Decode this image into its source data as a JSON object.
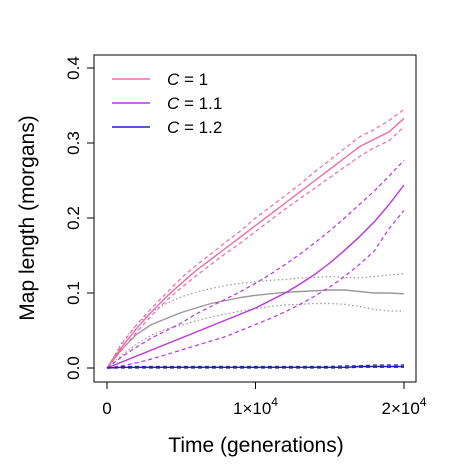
{
  "chart_data": {
    "type": "line",
    "title": "",
    "xlabel": "Time (generations)",
    "ylabel": "Map length (morgans)",
    "xlim": [
      0,
      20000
    ],
    "ylim": [
      0,
      0.4
    ],
    "grid": false,
    "legend_position": "top-left",
    "x_ticks": [
      {
        "value": 0,
        "label": "0"
      },
      {
        "value": 10000,
        "label_base": "1×10",
        "label_exp": "4"
      },
      {
        "value": 20000,
        "label_base": "2×10",
        "label_exp": "4"
      }
    ],
    "y_ticks": [
      {
        "value": 0.0,
        "label": "0.0"
      },
      {
        "value": 0.1,
        "label": "0.1"
      },
      {
        "value": 0.2,
        "label": "0.2"
      },
      {
        "value": 0.3,
        "label": "0.3"
      },
      {
        "value": 0.4,
        "label": "0.4"
      }
    ],
    "legend": [
      {
        "var": "C",
        "rest": " = 1",
        "color": "#ee6aa7"
      },
      {
        "var": "C",
        "rest": " = 1.1",
        "color": "#bb33dd"
      },
      {
        "var": "C",
        "rest": " = 1.2",
        "color": "#2222aa"
      }
    ],
    "x": [
      0,
      1000,
      2000,
      3000,
      4000,
      5000,
      6000,
      7000,
      8000,
      9000,
      10000,
      11000,
      12000,
      13000,
      14000,
      15000,
      16000,
      17000,
      18000,
      19000,
      20000
    ],
    "series": [
      {
        "group": "C = 1",
        "style": "solid",
        "color": "#ee6aa7",
        "values": [
          0.0,
          0.028,
          0.053,
          0.075,
          0.095,
          0.113,
          0.13,
          0.145,
          0.16,
          0.175,
          0.19,
          0.205,
          0.22,
          0.235,
          0.25,
          0.265,
          0.28,
          0.295,
          0.305,
          0.315,
          0.333
        ]
      },
      {
        "group": "C = 1",
        "style": "dashed",
        "color": "#ee6aa7",
        "values": [
          0.0,
          0.032,
          0.058,
          0.08,
          0.1,
          0.12,
          0.137,
          0.152,
          0.168,
          0.183,
          0.2,
          0.215,
          0.23,
          0.245,
          0.262,
          0.277,
          0.293,
          0.308,
          0.318,
          0.33,
          0.345
        ]
      },
      {
        "group": "C = 1",
        "style": "dashed",
        "color": "#ee6aa7",
        "values": [
          0.0,
          0.024,
          0.048,
          0.07,
          0.09,
          0.107,
          0.123,
          0.138,
          0.153,
          0.167,
          0.182,
          0.197,
          0.212,
          0.226,
          0.24,
          0.254,
          0.268,
          0.282,
          0.294,
          0.303,
          0.322
        ]
      },
      {
        "group": "C = 1.1",
        "style": "solid",
        "color": "#bb33dd",
        "values": [
          0.0,
          0.008,
          0.016,
          0.024,
          0.032,
          0.04,
          0.048,
          0.056,
          0.064,
          0.072,
          0.08,
          0.09,
          0.1,
          0.112,
          0.125,
          0.14,
          0.157,
          0.175,
          0.195,
          0.218,
          0.244
        ]
      },
      {
        "group": "C = 1.1",
        "style": "dashed",
        "color": "#bb33dd",
        "values": [
          0.0,
          0.015,
          0.028,
          0.04,
          0.05,
          0.06,
          0.072,
          0.082,
          0.092,
          0.102,
          0.113,
          0.125,
          0.138,
          0.152,
          0.167,
          0.183,
          0.2,
          0.218,
          0.236,
          0.256,
          0.277
        ]
      },
      {
        "group": "C = 1.1",
        "style": "dashed",
        "color": "#bb33dd",
        "values": [
          0.0,
          0.003,
          0.007,
          0.012,
          0.018,
          0.024,
          0.03,
          0.036,
          0.042,
          0.05,
          0.058,
          0.066,
          0.075,
          0.085,
          0.096,
          0.108,
          0.122,
          0.138,
          0.156,
          0.186,
          0.21
        ]
      },
      {
        "group": "C = 1.2",
        "style": "solid",
        "color": "#2222aa",
        "values": [
          0.0,
          0.001,
          0.001,
          0.001,
          0.001,
          0.001,
          0.001,
          0.001,
          0.001,
          0.001,
          0.001,
          0.001,
          0.001,
          0.001,
          0.001,
          0.001,
          0.001,
          0.002,
          0.002,
          0.002,
          0.002
        ]
      },
      {
        "group": "C = 1.2",
        "style": "dashed",
        "color": "#2222aa",
        "values": [
          0.0,
          0.002,
          0.002,
          0.002,
          0.002,
          0.002,
          0.002,
          0.002,
          0.002,
          0.002,
          0.002,
          0.002,
          0.002,
          0.002,
          0.002,
          0.002,
          0.003,
          0.003,
          0.004,
          0.004,
          0.004
        ]
      },
      {
        "group": "C = 1.2",
        "style": "dashed",
        "color": "#2222aa",
        "values": [
          0.0,
          0.0,
          0.0,
          0.0,
          0.0,
          0.0,
          0.0,
          0.0,
          0.0,
          0.0,
          0.0,
          0.0,
          0.0,
          0.0,
          0.0,
          0.0,
          0.0,
          0.001,
          0.001,
          0.001,
          0.001
        ]
      },
      {
        "group": "unlabeled",
        "style": "solid",
        "color": "#999999",
        "values": [
          0.0,
          0.025,
          0.045,
          0.058,
          0.066,
          0.074,
          0.08,
          0.086,
          0.09,
          0.094,
          0.097,
          0.099,
          0.101,
          0.102,
          0.103,
          0.104,
          0.104,
          0.102,
          0.1,
          0.1,
          0.099
        ]
      },
      {
        "group": "unlabeled",
        "style": "dotted",
        "color": "#999999",
        "values": [
          0.0,
          0.034,
          0.058,
          0.075,
          0.086,
          0.095,
          0.101,
          0.106,
          0.11,
          0.113,
          0.115,
          0.117,
          0.118,
          0.12,
          0.121,
          0.122,
          0.121,
          0.12,
          0.122,
          0.124,
          0.126
        ]
      },
      {
        "group": "unlabeled",
        "style": "dotted",
        "color": "#999999",
        "values": [
          0.0,
          0.017,
          0.032,
          0.044,
          0.052,
          0.057,
          0.063,
          0.068,
          0.072,
          0.076,
          0.079,
          0.082,
          0.084,
          0.085,
          0.086,
          0.086,
          0.085,
          0.082,
          0.078,
          0.076,
          0.076
        ]
      }
    ]
  }
}
